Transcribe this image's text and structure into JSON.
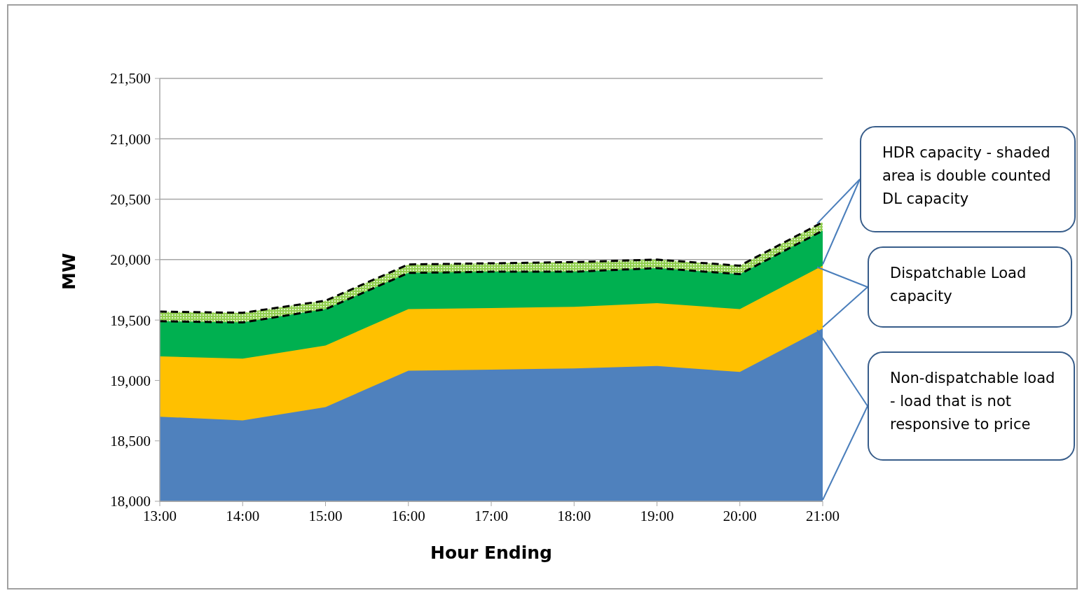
{
  "chart_data": {
    "type": "area",
    "xlabel": "Hour Ending",
    "ylabel": "MW",
    "categories": [
      "13:00",
      "14:00",
      "15:00",
      "16:00",
      "17:00",
      "18:00",
      "19:00",
      "20:00",
      "21:00"
    ],
    "series": [
      {
        "color": "#4f81bd",
        "values": [
          18700,
          18670,
          18780,
          19080,
          19090,
          19100,
          19120,
          19070,
          19430
        ]
      },
      {
        "color": "#ffc000",
        "values": [
          19200,
          19180,
          19290,
          19590,
          19600,
          19610,
          19640,
          19590,
          19950
        ]
      },
      {
        "color": "#00b050",
        "line_style": "dashed",
        "values": [
          19490,
          19480,
          19590,
          19890,
          19900,
          19900,
          19930,
          19880,
          20240
        ]
      },
      {
        "color": "#92d050",
        "line_style": "dashed",
        "values": [
          19570,
          19560,
          19660,
          19960,
          19970,
          19980,
          20000,
          19950,
          20310
        ]
      }
    ],
    "ylim": [
      18000,
      21500
    ],
    "yticks": [
      {
        "value": 18000,
        "label": "18,000"
      },
      {
        "value": 18500,
        "label": "18,500"
      },
      {
        "value": 19000,
        "label": "19,000"
      },
      {
        "value": 19500,
        "label": "19,500"
      },
      {
        "value": 20000,
        "label": "20,000"
      },
      {
        "value": 20500,
        "label": "20,500"
      },
      {
        "value": 21000,
        "label": "21,000"
      },
      {
        "value": 21500,
        "label": "21,500"
      }
    ],
    "grid": "y",
    "annotations": [
      "HDR capacity - shaded area is double counted DL capacity",
      "Dispatchable Load capacity",
      "Non-dispatchable load - load that is not responsive to price"
    ]
  }
}
